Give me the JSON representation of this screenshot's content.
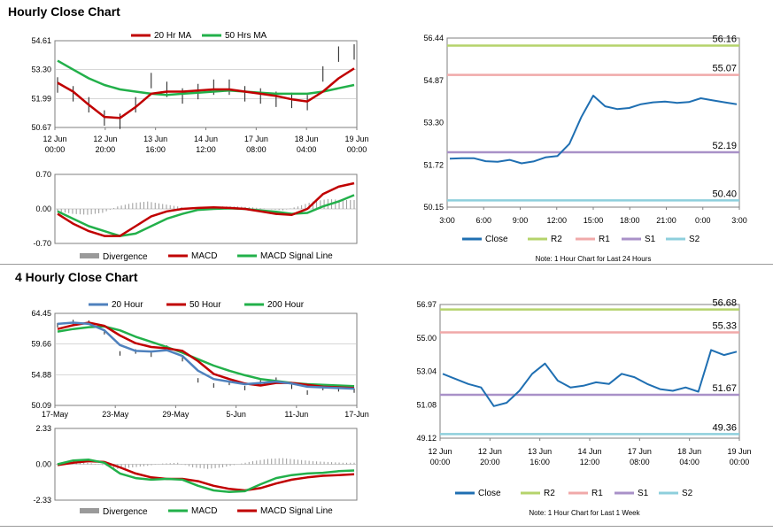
{
  "titles": {
    "hourly": "Hourly Close Chart",
    "four_hourly": "4 Hourly Close Chart"
  },
  "colors": {
    "close": "#1f6fb2",
    "ma_red": "#c00000",
    "ma_green": "#22b04a",
    "ma_blue": "#4f81bd",
    "bars": "#1a1a1a",
    "divergence": "#9a9a9a",
    "R2": "#b5d36b",
    "R1": "#f0a9a9",
    "S1": "#a991c8",
    "S2": "#8ecfdc",
    "frame": "#7f7f7f"
  },
  "chart_data": [
    {
      "id": "hourly_price",
      "type": "line",
      "legend": [
        "20 Hr MA",
        "50 Hrs MA"
      ],
      "y_ticks": [
        "54.61",
        "53.30",
        "51.99",
        "50.67"
      ],
      "ylim": [
        50.67,
        54.61
      ],
      "x_ticks": [
        [
          "12 Jun",
          "00:00"
        ],
        [
          "12 Jun",
          "20:00"
        ],
        [
          "13 Jun",
          "16:00"
        ],
        [
          "14 Jun",
          "12:00"
        ],
        [
          "17 Jun",
          "08:00"
        ],
        [
          "18 Jun",
          "04:00"
        ],
        [
          "19 Jun",
          "00:00"
        ]
      ],
      "close": [
        52.6,
        52.2,
        51.7,
        51.1,
        50.95,
        51.7,
        52.8,
        52.4,
        52.1,
        52.3,
        52.5,
        52.5,
        52.2,
        52.1,
        51.95,
        51.9,
        51.8,
        53.1,
        54.0,
        54.1
      ],
      "ma20": [
        52.7,
        52.3,
        51.7,
        51.15,
        51.1,
        51.6,
        52.2,
        52.3,
        52.3,
        52.35,
        52.4,
        52.4,
        52.3,
        52.2,
        52.1,
        51.95,
        51.85,
        52.3,
        52.9,
        53.35
      ],
      "ma50": [
        53.7,
        53.3,
        52.9,
        52.6,
        52.4,
        52.3,
        52.2,
        52.15,
        52.2,
        52.25,
        52.3,
        52.35,
        52.3,
        52.25,
        52.2,
        52.2,
        52.2,
        52.3,
        52.45,
        52.6
      ]
    },
    {
      "id": "hourly_macd",
      "type": "line",
      "legend": [
        "Divergence",
        "MACD",
        "MACD Signal Line"
      ],
      "y_ticks": [
        "0.70",
        "0.00",
        "-0.70"
      ],
      "ylim": [
        -0.7,
        0.7
      ],
      "divergence": [
        -0.05,
        -0.1,
        -0.12,
        -0.08,
        0.05,
        0.12,
        0.15,
        0.1,
        0.05,
        0.0,
        0.02,
        0.05,
        0.05,
        0.03,
        0.0,
        -0.03,
        0.05,
        0.15,
        0.2,
        0.18
      ],
      "macd": [
        -0.1,
        -0.3,
        -0.45,
        -0.55,
        -0.55,
        -0.35,
        -0.15,
        -0.05,
        0.0,
        0.02,
        0.03,
        0.02,
        0.0,
        -0.05,
        -0.1,
        -0.12,
        0.0,
        0.3,
        0.45,
        0.52
      ],
      "signal": [
        -0.05,
        -0.2,
        -0.35,
        -0.45,
        -0.55,
        -0.5,
        -0.35,
        -0.2,
        -0.1,
        -0.02,
        0.0,
        0.01,
        0.0,
        -0.03,
        -0.06,
        -0.1,
        -0.08,
        0.05,
        0.15,
        0.28
      ]
    },
    {
      "id": "hourly_pivots",
      "type": "line",
      "y_ticks": [
        "56.44",
        "54.87",
        "53.30",
        "51.72",
        "50.15"
      ],
      "ylim": [
        50.15,
        56.44
      ],
      "x_ticks": [
        "3:00",
        "6:00",
        "9:00",
        "12:00",
        "15:00",
        "18:00",
        "21:00",
        "0:00",
        "3:00"
      ],
      "close": [
        51.95,
        51.97,
        51.97,
        51.86,
        51.84,
        51.91,
        51.78,
        51.85,
        52.0,
        52.05,
        52.5,
        53.5,
        54.3,
        53.9,
        53.8,
        53.84,
        53.98,
        54.05,
        54.08,
        54.03,
        54.06,
        54.2,
        54.12,
        54.05,
        53.98
      ],
      "levels": {
        "R2": 56.16,
        "R1": 55.07,
        "S1": 52.19,
        "S2": 50.4
      },
      "level_labels": [
        "56.16",
        "55.07",
        "52.19",
        "50.40"
      ],
      "legend": [
        "Close",
        "R2",
        "R1",
        "S1",
        "S2"
      ],
      "note": "Note: 1 Hour Chart for Last 24 Hours"
    },
    {
      "id": "four_hourly_price",
      "type": "line",
      "legend": [
        "20 Hour",
        "50 Hour",
        "200 Hour"
      ],
      "y_ticks": [
        "64.45",
        "59.66",
        "54.88",
        "50.09"
      ],
      "ylim": [
        50.09,
        64.45
      ],
      "x_ticks": [
        "17-May",
        "23-May",
        "29-May",
        "5-Jun",
        "11-Jun",
        "17-Jun"
      ],
      "close": [
        62.6,
        63.1,
        63.0,
        61.5,
        58.2,
        58.5,
        58.0,
        59.1,
        57.3,
        54.0,
        53.2,
        53.6,
        52.8,
        53.7,
        54.1,
        53.0,
        52.1,
        52.8,
        52.6,
        52.4
      ],
      "ma20": [
        62.8,
        63.0,
        62.8,
        61.8,
        59.5,
        58.6,
        58.5,
        58.7,
        57.8,
        55.5,
        54.2,
        53.8,
        53.4,
        53.6,
        53.8,
        53.5,
        53.0,
        52.9,
        52.8,
        52.7
      ],
      "ma50": [
        62.0,
        62.6,
        63.0,
        62.5,
        61.0,
        59.8,
        59.2,
        59.0,
        58.6,
        57.0,
        55.0,
        54.2,
        53.5,
        53.2,
        53.6,
        53.6,
        53.3,
        53.0,
        52.9,
        52.8
      ],
      "ma200": [
        61.6,
        62.0,
        62.3,
        62.4,
        61.8,
        60.8,
        60.0,
        59.2,
        58.3,
        57.3,
        56.3,
        55.5,
        54.8,
        54.2,
        53.9,
        53.6,
        53.4,
        53.3,
        53.2,
        53.1
      ]
    },
    {
      "id": "four_hourly_macd",
      "type": "line",
      "legend": [
        "Divergence",
        "MACD",
        "MACD Signal Line"
      ],
      "y_ticks": [
        "2.33",
        "0.00",
        "-2.33"
      ],
      "ylim": [
        -2.33,
        2.33
      ],
      "divergence": [
        0.05,
        0.1,
        0.1,
        -0.05,
        -0.3,
        -0.2,
        -0.1,
        0.05,
        0.1,
        -0.2,
        -0.3,
        -0.2,
        0.0,
        0.2,
        0.35,
        0.4,
        0.3,
        0.2,
        0.15,
        0.1
      ],
      "macd": [
        0.0,
        0.25,
        0.3,
        0.1,
        -0.6,
        -0.9,
        -1.0,
        -0.95,
        -1.0,
        -1.4,
        -1.7,
        -1.8,
        -1.75,
        -1.3,
        -0.9,
        -0.7,
        -0.6,
        -0.55,
        -0.45,
        -0.4
      ],
      "signal": [
        -0.05,
        0.1,
        0.2,
        0.15,
        -0.2,
        -0.6,
        -0.85,
        -0.95,
        -0.95,
        -1.1,
        -1.4,
        -1.6,
        -1.7,
        -1.55,
        -1.25,
        -1.0,
        -0.85,
        -0.75,
        -0.7,
        -0.65
      ]
    },
    {
      "id": "four_hourly_pivots",
      "type": "line",
      "y_ticks": [
        "56.97",
        "55.00",
        "53.04",
        "51.08",
        "49.12"
      ],
      "ylim": [
        49.12,
        56.97
      ],
      "x_ticks": [
        [
          "12 Jun",
          "00:00"
        ],
        [
          "12 Jun",
          "20:00"
        ],
        [
          "13 Jun",
          "16:00"
        ],
        [
          "14 Jun",
          "12:00"
        ],
        [
          "17 Jun",
          "08:00"
        ],
        [
          "18 Jun",
          "04:00"
        ],
        [
          "19 Jun",
          "00:00"
        ]
      ],
      "close": [
        52.9,
        52.6,
        52.3,
        52.1,
        51.0,
        51.2,
        51.9,
        52.9,
        53.5,
        52.5,
        52.1,
        52.2,
        52.4,
        52.3,
        52.9,
        52.7,
        52.3,
        52.0,
        51.9,
        52.1,
        51.85,
        54.3,
        54.0,
        54.2
      ],
      "levels": {
        "R2": 56.68,
        "R1": 55.33,
        "S1": 51.67,
        "S2": 49.36
      },
      "level_labels": [
        "56.68",
        "55.33",
        "51.67",
        "49.36"
      ],
      "legend": [
        "Close",
        "R2",
        "R1",
        "S1",
        "S2"
      ],
      "note": "Note: 1 Hour Chart for Last 1 Week"
    }
  ]
}
